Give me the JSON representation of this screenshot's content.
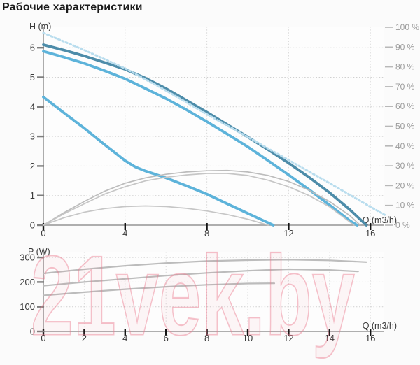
{
  "title": "Рабочие характеристики",
  "watermark": {
    "text": "21vek.by"
  },
  "colors": {
    "curve_dark_blue": "#4d8ca9",
    "curve_light_blue": "#5db3da",
    "curve_dotted_blue": "#b9ddee",
    "curve_gray": "#bcbcbc",
    "watermark_pink": "#eb7a8e"
  },
  "chart_data": [
    {
      "id": "head-chart",
      "type": "line",
      "xlabel": "Q (m3/h)",
      "ylabel": "H (m)",
      "xlim": [
        0,
        16.8
      ],
      "ylim": [
        0,
        6.7
      ],
      "x_ticks": [
        0,
        4,
        8,
        12,
        16
      ],
      "y_ticks": [
        0,
        1,
        2,
        3,
        4,
        5,
        6
      ],
      "x_grid": [
        4,
        8,
        12,
        16
      ],
      "grid": true,
      "right_axis": {
        "ticks": [
          {
            "v": 100,
            "label": "100 %"
          },
          {
            "v": 90,
            "label": "90 %"
          },
          {
            "v": 80,
            "label": "80 %"
          },
          {
            "v": 70,
            "label": "70 %"
          },
          {
            "v": 60,
            "label": "60 %"
          },
          {
            "v": 50,
            "label": "50 %"
          },
          {
            "v": 40,
            "label": "40 %"
          },
          {
            "v": 30,
            "label": "30 %"
          },
          {
            "v": 20,
            "label": "20 %"
          },
          {
            "v": 10,
            "label": "10 %"
          },
          {
            "v": 0,
            "label": "0 %"
          }
        ]
      },
      "series": [
        {
          "name": "head-speed-3",
          "color": "#4d8ca9",
          "width": 3.8,
          "dash": null,
          "points": [
            [
              0,
              6.1
            ],
            [
              1,
              5.92
            ],
            [
              2,
              5.72
            ],
            [
              3,
              5.5
            ],
            [
              4,
              5.27
            ],
            [
              5,
              4.97
            ],
            [
              6,
              4.62
            ],
            [
              7,
              4.22
            ],
            [
              8,
              3.82
            ],
            [
              9,
              3.4
            ],
            [
              10,
              2.98
            ],
            [
              11,
              2.55
            ],
            [
              12,
              2.1
            ],
            [
              13,
              1.62
            ],
            [
              14,
              1.1
            ],
            [
              15,
              0.52
            ],
            [
              15.8,
              0
            ]
          ]
        },
        {
          "name": "head-speed-2",
          "color": "#5db3da",
          "width": 3.8,
          "dash": null,
          "points": [
            [
              0,
              5.88
            ],
            [
              1,
              5.68
            ],
            [
              2,
              5.47
            ],
            [
              3,
              5.22
            ],
            [
              4,
              4.95
            ],
            [
              5,
              4.62
            ],
            [
              6,
              4.28
            ],
            [
              7,
              3.9
            ],
            [
              8,
              3.5
            ],
            [
              9,
              3.08
            ],
            [
              10,
              2.65
            ],
            [
              11,
              2.18
            ],
            [
              12,
              1.7
            ],
            [
              13,
              1.2
            ],
            [
              14,
              0.68
            ],
            [
              15,
              0.15
            ],
            [
              15.35,
              0
            ]
          ]
        },
        {
          "name": "head-speed-1",
          "color": "#5db3da",
          "width": 3.8,
          "dash": null,
          "points": [
            [
              0,
              4.33
            ],
            [
              1,
              3.8
            ],
            [
              2,
              3.28
            ],
            [
              3,
              2.72
            ],
            [
              4,
              2.18
            ],
            [
              4.5,
              1.97
            ],
            [
              5,
              1.83
            ],
            [
              6,
              1.6
            ],
            [
              7,
              1.33
            ],
            [
              8,
              1.05
            ],
            [
              9,
              0.72
            ],
            [
              10,
              0.4
            ],
            [
              11,
              0.08
            ],
            [
              11.25,
              0
            ]
          ]
        },
        {
          "name": "head-proportional-dotted",
          "color": "#b9ddee",
          "width": 3,
          "dash": "2.4 3.4",
          "points": [
            [
              0,
              6.5
            ],
            [
              2,
              5.92
            ],
            [
              4,
              5.3
            ],
            [
              6,
              4.55
            ],
            [
              8,
              3.75
            ],
            [
              10,
              2.98
            ],
            [
              12,
              2.2
            ],
            [
              14,
              1.42
            ],
            [
              16,
              0.62
            ],
            [
              16.7,
              0.35
            ]
          ]
        },
        {
          "name": "efficiency-speed-3",
          "color": "#bcbcbc",
          "width": 1.7,
          "dash": null,
          "points": [
            [
              0,
              0
            ],
            [
              1,
              0.42
            ],
            [
              2,
              0.8
            ],
            [
              3,
              1.15
            ],
            [
              4,
              1.42
            ],
            [
              5,
              1.6
            ],
            [
              6,
              1.72
            ],
            [
              7,
              1.8
            ],
            [
              8,
              1.84
            ],
            [
              9,
              1.85
            ],
            [
              10,
              1.8
            ],
            [
              11,
              1.68
            ],
            [
              12,
              1.48
            ],
            [
              13,
              1.18
            ],
            [
              14,
              0.8
            ],
            [
              15,
              0.32
            ],
            [
              15.5,
              0
            ]
          ]
        },
        {
          "name": "efficiency-speed-2",
          "color": "#c6c6c6",
          "width": 1.7,
          "dash": null,
          "points": [
            [
              0,
              0
            ],
            [
              1,
              0.38
            ],
            [
              2,
              0.72
            ],
            [
              3,
              1.05
            ],
            [
              4,
              1.3
            ],
            [
              5,
              1.5
            ],
            [
              6,
              1.62
            ],
            [
              7,
              1.7
            ],
            [
              8,
              1.75
            ],
            [
              9,
              1.75
            ],
            [
              10,
              1.68
            ],
            [
              11,
              1.52
            ],
            [
              12,
              1.3
            ],
            [
              13,
              1.0
            ],
            [
              14,
              0.62
            ],
            [
              15.2,
              0
            ]
          ]
        },
        {
          "name": "efficiency-speed-1",
          "color": "#c6c6c6",
          "width": 1.7,
          "dash": null,
          "points": [
            [
              0,
              0
            ],
            [
              1,
              0.25
            ],
            [
              2,
              0.44
            ],
            [
              3,
              0.56
            ],
            [
              4,
              0.63
            ],
            [
              5,
              0.65
            ],
            [
              6,
              0.63
            ],
            [
              7,
              0.57
            ],
            [
              8,
              0.48
            ],
            [
              9,
              0.36
            ],
            [
              10,
              0.2
            ],
            [
              11,
              0
            ]
          ]
        }
      ]
    },
    {
      "id": "power-chart",
      "type": "line",
      "xlabel": "Q (m3/h)",
      "ylabel": "P (W)",
      "xlim": [
        0,
        16.8
      ],
      "ylim": [
        0,
        320
      ],
      "x_ticks": [
        0,
        2,
        4,
        6,
        8,
        10,
        12,
        14,
        16
      ],
      "y_ticks": [
        0,
        100,
        200,
        300
      ],
      "x_grid": [
        2,
        4,
        6,
        8,
        10,
        12,
        14,
        16
      ],
      "grid": true,
      "series": [
        {
          "name": "power-speed-3",
          "color": "#bcbcbc",
          "width": 2.2,
          "dash": null,
          "points": [
            [
              0,
              235
            ],
            [
              2,
              252
            ],
            [
              4,
              266
            ],
            [
              6,
              277
            ],
            [
              8,
              285
            ],
            [
              10,
              289
            ],
            [
              12,
              291
            ],
            [
              14,
              288
            ],
            [
              15.8,
              281
            ]
          ]
        },
        {
          "name": "power-speed-2",
          "color": "#bcbcbc",
          "width": 2.2,
          "dash": null,
          "points": [
            [
              0,
              185
            ],
            [
              2,
              200
            ],
            [
              4,
              213
            ],
            [
              6,
              226
            ],
            [
              8,
              237
            ],
            [
              10,
              246
            ],
            [
              12,
              252
            ],
            [
              14,
              249
            ],
            [
              15.4,
              243
            ]
          ]
        },
        {
          "name": "power-speed-1",
          "color": "#bcbcbc",
          "width": 2.2,
          "dash": null,
          "points": [
            [
              0,
              146
            ],
            [
              2,
              159
            ],
            [
              4,
              171
            ],
            [
              6,
              181
            ],
            [
              8,
              189
            ],
            [
              10,
              194
            ],
            [
              11.3,
              195
            ]
          ]
        }
      ]
    }
  ]
}
